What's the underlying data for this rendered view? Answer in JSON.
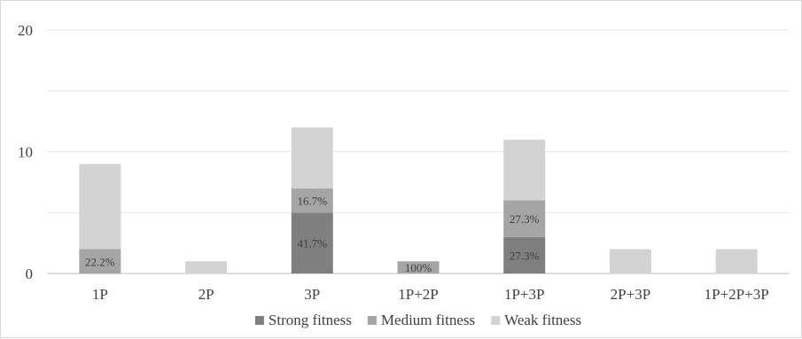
{
  "chart_data": {
    "type": "bar",
    "stacked": true,
    "categories": [
      "1P",
      "2P",
      "3P",
      "1P+2P",
      "1P+3P",
      "2P+3P",
      "1P+2P+3P"
    ],
    "series": [
      {
        "name": "Strong fitness",
        "values": [
          0,
          0,
          5,
          0,
          3,
          0,
          0
        ],
        "color": "#7f7f7f"
      },
      {
        "name": "Medium fitness",
        "values": [
          2,
          0,
          2,
          1,
          3,
          0,
          0
        ],
        "color": "#a5a5a5"
      },
      {
        "name": "Weak fitness",
        "values": [
          7,
          1,
          5,
          0,
          5,
          2,
          2
        ],
        "color": "#d3d3d3"
      }
    ],
    "data_labels": [
      {
        "category": "1P",
        "series": "Medium fitness",
        "text": "22.2%"
      },
      {
        "category": "3P",
        "series": "Strong fitness",
        "text": "41.7%"
      },
      {
        "category": "3P",
        "series": "Medium fitness",
        "text": "16.7%"
      },
      {
        "category": "1P+2P",
        "series": "Medium fitness",
        "text": "100%"
      },
      {
        "category": "1P+3P",
        "series": "Strong fitness",
        "text": "27.3%"
      },
      {
        "category": "1P+3P",
        "series": "Medium fitness",
        "text": "27.3%"
      }
    ],
    "y_ticks": [
      "0",
      "10",
      "20"
    ],
    "ylim": [
      0,
      20
    ],
    "grid": true,
    "legend_position": "bottom"
  }
}
